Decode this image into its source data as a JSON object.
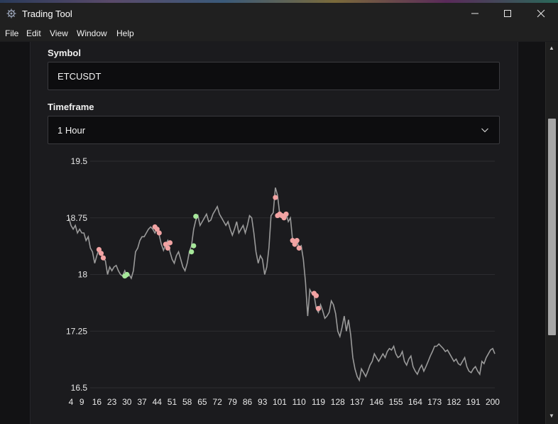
{
  "window": {
    "title": "Trading Tool",
    "controls": [
      "minimize-icon",
      "maximize-icon",
      "close-icon"
    ]
  },
  "menu": [
    "File",
    "Edit",
    "View",
    "Window",
    "Help"
  ],
  "form": {
    "symbol_label": "Symbol",
    "symbol_value": "ETCUSDT",
    "timeframe_label": "Timeframe",
    "timeframe_value": "1 Hour"
  },
  "colors": {
    "line": "#9a9a9a",
    "sell_marker": "#f2a3a3",
    "buy_marker": "#a6e79a",
    "grid": "#2c2c30"
  },
  "chart_data": {
    "type": "line",
    "title": "",
    "xlabel": "",
    "ylabel": "",
    "ylim": [
      16.5,
      19.5
    ],
    "yticks": [
      "19.5",
      "18.75",
      "18",
      "17.25",
      "16.5"
    ],
    "ytick_values": [
      19.5,
      18.75,
      18,
      17.25,
      16.5
    ],
    "xticks": [
      "4",
      "9",
      "16",
      "23",
      "30",
      "37",
      "44",
      "51",
      "58",
      "65",
      "72",
      "79",
      "86",
      "93",
      "101",
      "110",
      "119",
      "128",
      "137",
      "146",
      "155",
      "164",
      "173",
      "182",
      "191",
      "200"
    ],
    "xlim": [
      3,
      201
    ],
    "grid": "horizontal",
    "series": [
      {
        "points": [
          [
            3,
            18.75
          ],
          [
            4,
            18.65
          ],
          [
            5,
            18.6
          ],
          [
            6,
            18.65
          ],
          [
            7,
            18.55
          ],
          [
            8,
            18.6
          ],
          [
            9,
            18.55
          ],
          [
            10,
            18.55
          ],
          [
            11,
            18.45
          ],
          [
            12,
            18.5
          ],
          [
            13,
            18.35
          ],
          [
            14,
            18.3
          ],
          [
            15,
            18.15
          ],
          [
            16,
            18.25
          ],
          [
            17,
            18.33
          ],
          [
            18,
            18.28
          ],
          [
            19,
            18.22
          ],
          [
            20,
            18.18
          ],
          [
            21,
            18.0
          ],
          [
            22,
            18.1
          ],
          [
            23,
            18.05
          ],
          [
            24,
            18.1
          ],
          [
            25,
            18.12
          ],
          [
            26,
            18.05
          ],
          [
            27,
            18.0
          ],
          [
            28,
            17.98
          ],
          [
            29,
            18.05
          ],
          [
            30,
            17.97
          ],
          [
            31,
            18.0
          ],
          [
            32,
            17.95
          ],
          [
            33,
            18.05
          ],
          [
            34,
            18.3
          ],
          [
            35,
            18.35
          ],
          [
            36,
            18.45
          ],
          [
            37,
            18.5
          ],
          [
            38,
            18.5
          ],
          [
            39,
            18.55
          ],
          [
            40,
            18.6
          ],
          [
            41,
            18.63
          ],
          [
            42,
            18.6
          ],
          [
            43,
            18.55
          ],
          [
            44,
            18.6
          ],
          [
            45,
            18.52
          ],
          [
            46,
            18.4
          ],
          [
            47,
            18.32
          ],
          [
            48,
            18.4
          ],
          [
            49,
            18.45
          ],
          [
            50,
            18.3
          ],
          [
            51,
            18.2
          ],
          [
            52,
            18.15
          ],
          [
            53,
            18.25
          ],
          [
            54,
            18.3
          ],
          [
            55,
            18.2
          ],
          [
            56,
            18.1
          ],
          [
            57,
            18.05
          ],
          [
            58,
            18.15
          ],
          [
            59,
            18.3
          ],
          [
            60,
            18.38
          ],
          [
            61,
            18.6
          ],
          [
            62,
            18.72
          ],
          [
            63,
            18.78
          ],
          [
            64,
            18.65
          ],
          [
            65,
            18.7
          ],
          [
            66,
            18.75
          ],
          [
            67,
            18.8
          ],
          [
            68,
            18.7
          ],
          [
            69,
            18.72
          ],
          [
            70,
            18.8
          ],
          [
            71,
            18.85
          ],
          [
            72,
            18.9
          ],
          [
            73,
            18.8
          ],
          [
            74,
            18.75
          ],
          [
            75,
            18.7
          ],
          [
            76,
            18.65
          ],
          [
            77,
            18.7
          ],
          [
            78,
            18.6
          ],
          [
            79,
            18.52
          ],
          [
            80,
            18.6
          ],
          [
            81,
            18.7
          ],
          [
            82,
            18.55
          ],
          [
            83,
            18.6
          ],
          [
            84,
            18.65
          ],
          [
            85,
            18.55
          ],
          [
            86,
            18.65
          ],
          [
            87,
            18.78
          ],
          [
            88,
            18.75
          ],
          [
            89,
            18.55
          ],
          [
            90,
            18.3
          ],
          [
            91,
            18.15
          ],
          [
            92,
            18.25
          ],
          [
            93,
            18.2
          ],
          [
            94,
            18.0
          ],
          [
            95,
            18.1
          ],
          [
            96,
            18.35
          ],
          [
            97,
            18.78
          ],
          [
            98,
            18.82
          ],
          [
            99,
            19.15
          ],
          [
            100,
            19.05
          ],
          [
            101,
            18.8
          ],
          [
            102,
            18.78
          ],
          [
            103,
            18.75
          ],
          [
            104,
            18.8
          ],
          [
            105,
            18.7
          ],
          [
            106,
            18.75
          ],
          [
            107,
            18.45
          ],
          [
            108,
            18.4
          ],
          [
            109,
            18.45
          ],
          [
            110,
            18.35
          ],
          [
            111,
            18.38
          ],
          [
            112,
            18.2
          ],
          [
            113,
            17.9
          ],
          [
            114,
            17.45
          ],
          [
            115,
            17.8
          ],
          [
            116,
            17.75
          ],
          [
            117,
            17.72
          ],
          [
            118,
            17.55
          ],
          [
            119,
            17.5
          ],
          [
            120,
            17.6
          ],
          [
            121,
            17.52
          ],
          [
            122,
            17.42
          ],
          [
            123,
            17.45
          ],
          [
            124,
            17.5
          ],
          [
            125,
            17.65
          ],
          [
            126,
            17.6
          ],
          [
            127,
            17.48
          ],
          [
            128,
            17.25
          ],
          [
            129,
            17.18
          ],
          [
            130,
            17.3
          ],
          [
            131,
            17.45
          ],
          [
            132,
            17.25
          ],
          [
            133,
            17.4
          ],
          [
            134,
            17.2
          ],
          [
            135,
            16.9
          ],
          [
            136,
            16.75
          ],
          [
            137,
            16.65
          ],
          [
            138,
            16.6
          ],
          [
            139,
            16.75
          ],
          [
            140,
            16.7
          ],
          [
            141,
            16.65
          ],
          [
            142,
            16.72
          ],
          [
            143,
            16.8
          ],
          [
            144,
            16.85
          ],
          [
            145,
            16.95
          ],
          [
            146,
            16.9
          ],
          [
            147,
            16.85
          ],
          [
            148,
            16.9
          ],
          [
            149,
            16.95
          ],
          [
            150,
            16.9
          ],
          [
            151,
            16.98
          ],
          [
            152,
            17.02
          ],
          [
            153,
            17.0
          ],
          [
            154,
            17.05
          ],
          [
            155,
            16.95
          ],
          [
            156,
            16.9
          ],
          [
            157,
            16.92
          ],
          [
            158,
            16.98
          ],
          [
            159,
            16.85
          ],
          [
            160,
            16.8
          ],
          [
            161,
            16.88
          ],
          [
            162,
            16.92
          ],
          [
            163,
            16.78
          ],
          [
            164,
            16.72
          ],
          [
            165,
            16.68
          ],
          [
            166,
            16.75
          ],
          [
            167,
            16.8
          ],
          [
            168,
            16.72
          ],
          [
            169,
            16.78
          ],
          [
            170,
            16.85
          ],
          [
            171,
            16.92
          ],
          [
            172,
            16.98
          ],
          [
            173,
            17.05
          ],
          [
            174,
            17.05
          ],
          [
            175,
            17.08
          ],
          [
            176,
            17.05
          ],
          [
            177,
            17.02
          ],
          [
            178,
            16.98
          ],
          [
            179,
            17.0
          ],
          [
            180,
            16.95
          ],
          [
            181,
            16.9
          ],
          [
            182,
            16.85
          ],
          [
            183,
            16.88
          ],
          [
            184,
            16.82
          ],
          [
            185,
            16.8
          ],
          [
            186,
            16.85
          ],
          [
            187,
            16.9
          ],
          [
            188,
            16.78
          ],
          [
            189,
            16.72
          ],
          [
            190,
            16.7
          ],
          [
            191,
            16.75
          ],
          [
            192,
            16.78
          ],
          [
            193,
            16.72
          ],
          [
            194,
            16.68
          ],
          [
            195,
            16.85
          ],
          [
            196,
            16.82
          ],
          [
            197,
            16.9
          ],
          [
            198,
            16.95
          ],
          [
            199,
            17.0
          ],
          [
            200,
            17.02
          ],
          [
            201,
            16.95
          ]
        ]
      }
    ],
    "markers_sell": [
      [
        17,
        18.33
      ],
      [
        18,
        18.28
      ],
      [
        19,
        18.22
      ],
      [
        43,
        18.63
      ],
      [
        44,
        18.6
      ],
      [
        45,
        18.55
      ],
      [
        48,
        18.4
      ],
      [
        49,
        18.35
      ],
      [
        50,
        18.42
      ],
      [
        99,
        19.02
      ],
      [
        100,
        18.78
      ],
      [
        101,
        18.8
      ],
      [
        102,
        18.78
      ],
      [
        103,
        18.75
      ],
      [
        104,
        18.8
      ],
      [
        107,
        18.45
      ],
      [
        108,
        18.4
      ],
      [
        109,
        18.45
      ],
      [
        110,
        18.35
      ],
      [
        117,
        17.75
      ],
      [
        118,
        17.72
      ],
      [
        119,
        17.55
      ]
    ],
    "markers_buy": [
      [
        29,
        17.98
      ],
      [
        30,
        18.0
      ],
      [
        60,
        18.3
      ],
      [
        61,
        18.38
      ],
      [
        62,
        18.77
      ]
    ]
  }
}
